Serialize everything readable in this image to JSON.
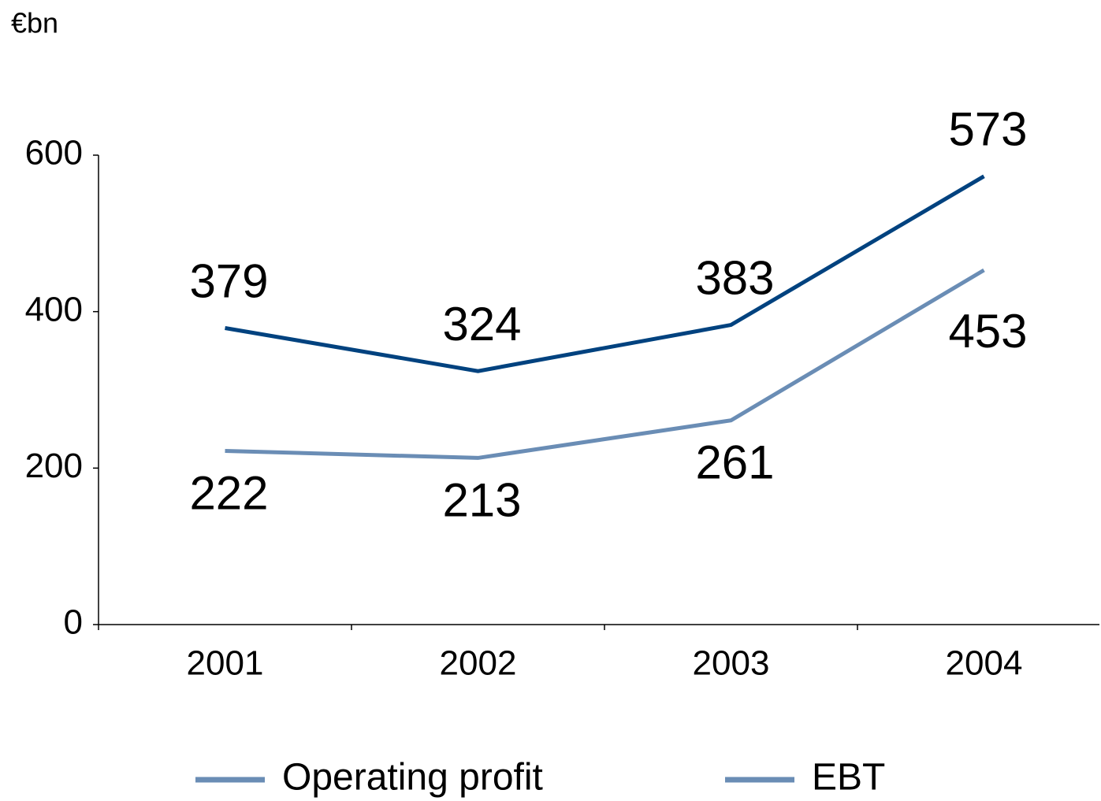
{
  "chart_data": {
    "type": "line",
    "y_label": "€bn",
    "categories": [
      "2001",
      "2002",
      "2003",
      "2004"
    ],
    "series": [
      {
        "name": "Operating profit",
        "color": "#00427f",
        "values": [
          379,
          324,
          383,
          573
        ]
      },
      {
        "name": "EBT",
        "color": "#6a8db5",
        "values": [
          222,
          213,
          261,
          453
        ]
      }
    ],
    "legend_color": "#6a8db5",
    "ylim": [
      0,
      600
    ],
    "yticks": [
      0,
      200,
      400,
      600
    ],
    "grid": false,
    "legend": "bottom"
  }
}
